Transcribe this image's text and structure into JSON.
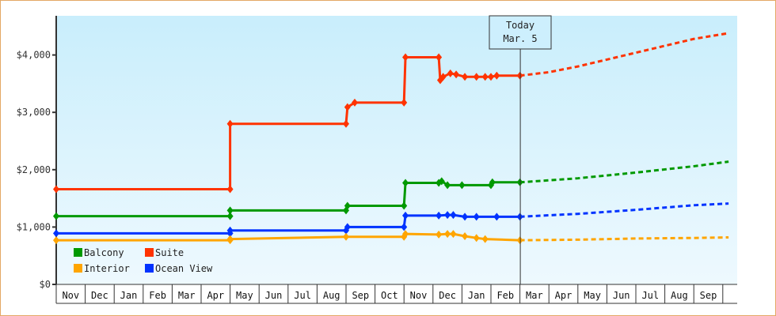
{
  "chart_data": {
    "type": "line",
    "title": "",
    "xlabel": "",
    "ylabel": "",
    "ylim": [
      0,
      4700
    ],
    "y_ticks": [
      "$0",
      "$1,000",
      "$2,000",
      "$3,000",
      "$4,000"
    ],
    "y_tick_values": [
      0,
      1000,
      2000,
      3000,
      4000
    ],
    "x_ticks": [
      "Nov",
      "Dec",
      "Jan",
      "Feb",
      "Mar",
      "Apr",
      "May",
      "Jun",
      "Jul",
      "Aug",
      "Sep",
      "Oct",
      "Nov",
      "Dec",
      "Jan",
      "Feb",
      "Mar",
      "Apr",
      "May",
      "Jun",
      "Jul",
      "Aug",
      "Sep"
    ],
    "grid": false,
    "legend_position": "lower-left inside",
    "annotation": {
      "line1": "Today",
      "line2": "Mar. 5",
      "x_month_index": 16
    },
    "series": [
      {
        "name": "Suite",
        "color": "#ff3300",
        "historical": [
          [
            0,
            1660
          ],
          [
            6,
            1660
          ],
          [
            6,
            2800
          ],
          [
            10,
            2800
          ],
          [
            10.05,
            3090
          ],
          [
            10.3,
            3170
          ],
          [
            12,
            3170
          ],
          [
            12.05,
            3960
          ],
          [
            13.2,
            3960
          ],
          [
            13.25,
            3560
          ],
          [
            13.35,
            3620
          ],
          [
            13.6,
            3680
          ],
          [
            13.8,
            3660
          ],
          [
            14.1,
            3620
          ],
          [
            14.5,
            3620
          ],
          [
            14.8,
            3620
          ],
          [
            15.0,
            3620
          ],
          [
            15.2,
            3640
          ],
          [
            16,
            3640
          ]
        ],
        "forecast": [
          [
            16,
            3640
          ],
          [
            17,
            3700
          ],
          [
            18,
            3800
          ],
          [
            19,
            3920
          ],
          [
            20,
            4040
          ],
          [
            21,
            4160
          ],
          [
            22,
            4280
          ],
          [
            23.2,
            4380
          ]
        ]
      },
      {
        "name": "Balcony",
        "color": "#009900",
        "historical": [
          [
            0,
            1190
          ],
          [
            6,
            1190
          ],
          [
            6,
            1290
          ],
          [
            10,
            1290
          ],
          [
            10.05,
            1370
          ],
          [
            12,
            1370
          ],
          [
            12.05,
            1770
          ],
          [
            13.2,
            1770
          ],
          [
            13.3,
            1800
          ],
          [
            13.5,
            1730
          ],
          [
            14,
            1730
          ],
          [
            15.0,
            1730
          ],
          [
            15.05,
            1780
          ],
          [
            16,
            1780
          ]
        ],
        "forecast": [
          [
            16,
            1780
          ],
          [
            18,
            1850
          ],
          [
            20,
            1950
          ],
          [
            22,
            2060
          ],
          [
            23.2,
            2140
          ]
        ]
      },
      {
        "name": "Ocean View",
        "color": "#0033ff",
        "historical": [
          [
            0,
            890
          ],
          [
            6,
            890
          ],
          [
            6,
            940
          ],
          [
            10,
            940
          ],
          [
            10.05,
            1000
          ],
          [
            12,
            1000
          ],
          [
            12.05,
            1200
          ],
          [
            13.2,
            1200
          ],
          [
            13.5,
            1210
          ],
          [
            13.7,
            1210
          ],
          [
            14.1,
            1180
          ],
          [
            14.5,
            1180
          ],
          [
            15.2,
            1180
          ],
          [
            16,
            1180
          ]
        ],
        "forecast": [
          [
            16,
            1180
          ],
          [
            18,
            1230
          ],
          [
            20,
            1300
          ],
          [
            22,
            1380
          ],
          [
            23.2,
            1410
          ]
        ]
      },
      {
        "name": "Interior",
        "color": "#ffa500",
        "historical": [
          [
            0,
            770
          ],
          [
            6,
            770
          ],
          [
            6,
            790
          ],
          [
            10,
            830
          ],
          [
            12,
            830
          ],
          [
            12.05,
            880
          ],
          [
            13.2,
            870
          ],
          [
            13.5,
            880
          ],
          [
            13.7,
            880
          ],
          [
            14.1,
            840
          ],
          [
            14.5,
            810
          ],
          [
            14.8,
            790
          ],
          [
            16,
            770
          ]
        ],
        "forecast": [
          [
            16,
            770
          ],
          [
            18,
            780
          ],
          [
            20,
            800
          ],
          [
            22,
            810
          ],
          [
            23.2,
            820
          ]
        ]
      }
    ]
  },
  "legend": [
    {
      "label": "Balcony",
      "color": "#009900"
    },
    {
      "label": "Suite",
      "color": "#ff3300"
    },
    {
      "label": "Interior",
      "color": "#ffa500"
    },
    {
      "label": "Ocean View",
      "color": "#0033ff"
    }
  ],
  "annotation": {
    "line1": "Today",
    "line2": "Mar. 5"
  }
}
